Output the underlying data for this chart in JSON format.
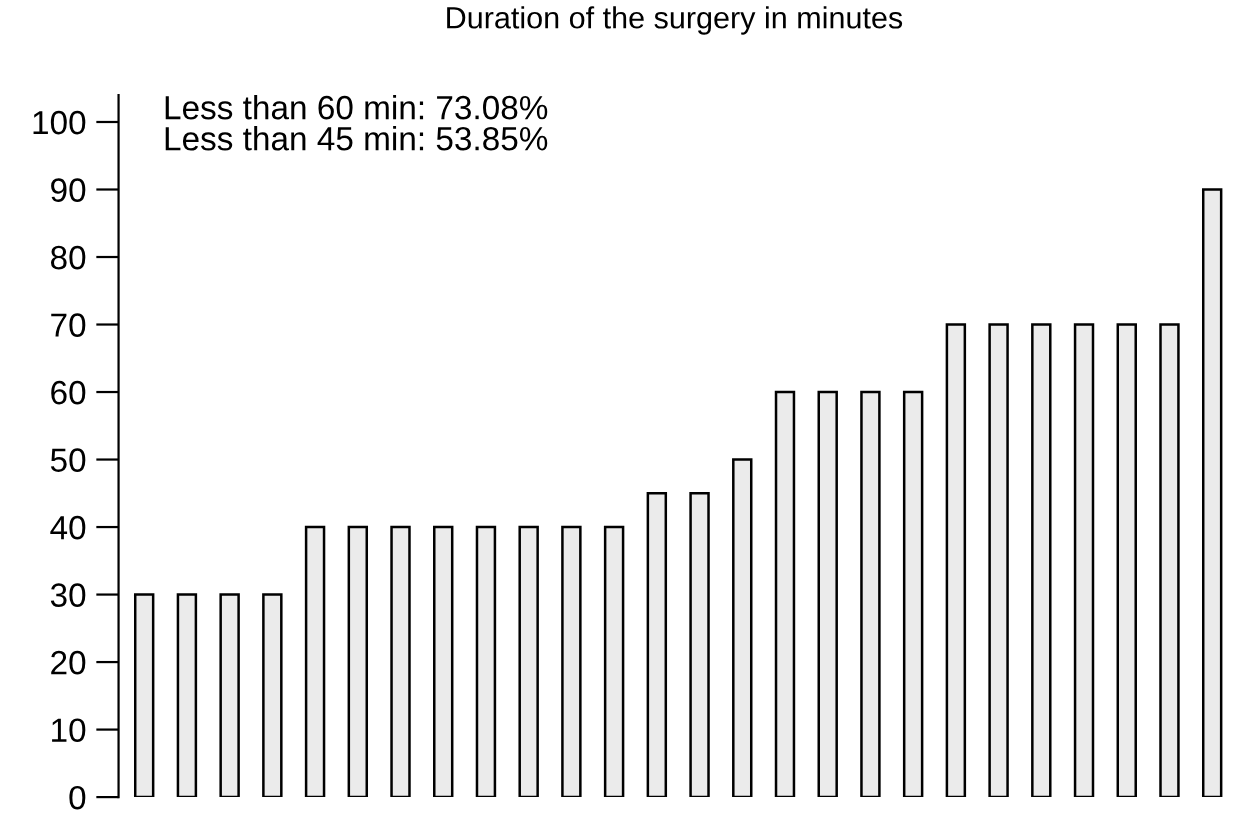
{
  "chart_data": {
    "type": "bar",
    "title": "Duration of the surgery in minutes",
    "categories": [
      null,
      null,
      null,
      null,
      null,
      null,
      null,
      null,
      null,
      null,
      null,
      null,
      null,
      null,
      null,
      null,
      null,
      null,
      null,
      null,
      null,
      null,
      null,
      null,
      null,
      null
    ],
    "values": [
      30,
      30,
      30,
      30,
      40,
      40,
      40,
      40,
      40,
      40,
      40,
      40,
      45,
      45,
      50,
      60,
      60,
      60,
      60,
      70,
      70,
      70,
      70,
      70,
      70,
      90
    ],
    "color": "#ebebeb",
    "annotations": [
      "Less than 60 min: 73.08%",
      "Less than 45 min: 53.85%"
    ],
    "ylim": [
      0,
      104
    ],
    "yticks": [
      0,
      10,
      20,
      30,
      40,
      50,
      60,
      70,
      80,
      90,
      100
    ],
    "tick_labels": "y",
    "grid": false,
    "legend": false
  }
}
